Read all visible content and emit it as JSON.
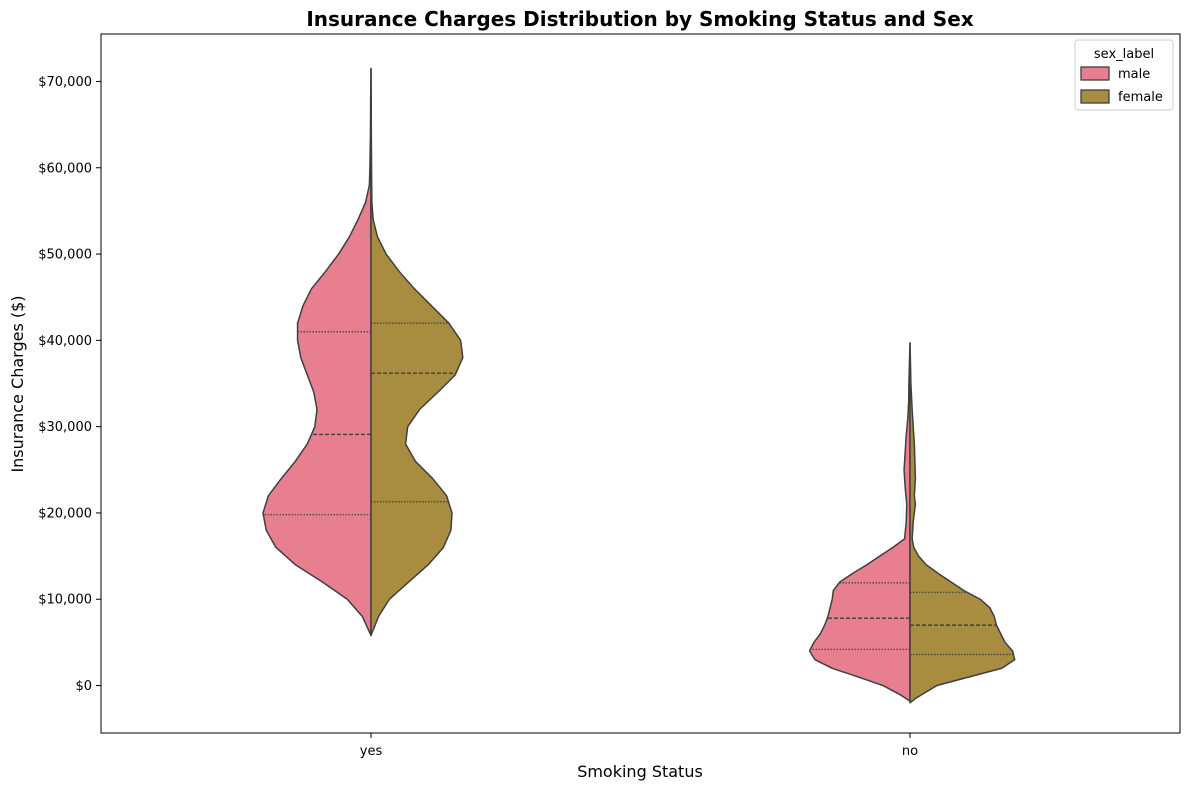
{
  "chart_data": {
    "type": "violin",
    "title": "Insurance Charges Distribution by Smoking Status and Sex",
    "xlabel": "Smoking Status",
    "ylabel": "Insurance Charges ($)",
    "categories": [
      "yes",
      "no"
    ],
    "ylim": [
      -5500,
      75500
    ],
    "yticks": [
      {
        "value": 0,
        "label": "$0"
      },
      {
        "value": 10000,
        "label": "$10,000"
      },
      {
        "value": 20000,
        "label": "$20,000"
      },
      {
        "value": 30000,
        "label": "$30,000"
      },
      {
        "value": 40000,
        "label": "$40,000"
      },
      {
        "value": 50000,
        "label": "$50,000"
      },
      {
        "value": 60000,
        "label": "$60,000"
      },
      {
        "value": 70000,
        "label": "$70,000"
      }
    ],
    "legend": {
      "title": "sex_label",
      "position": "top-right",
      "entries": [
        {
          "name": "male",
          "color": "#e87f90"
        },
        {
          "name": "female",
          "color": "#a88c3f"
        }
      ]
    },
    "grid": false,
    "split": true,
    "series": [
      {
        "name": "male",
        "color": "#e87f90",
        "violins": [
          {
            "category": "yes",
            "quartiles": {
              "q1": 19800,
              "median": 29100,
              "q3": 41000
            },
            "density": [
              [
                5800,
                0.0
              ],
              [
                8000,
                0.08
              ],
              [
                10000,
                0.22
              ],
              [
                12000,
                0.45
              ],
              [
                14000,
                0.7
              ],
              [
                16000,
                0.88
              ],
              [
                18000,
                0.97
              ],
              [
                20000,
                1.0
              ],
              [
                22000,
                0.95
              ],
              [
                24000,
                0.83
              ],
              [
                26000,
                0.7
              ],
              [
                28000,
                0.59
              ],
              [
                30000,
                0.52
              ],
              [
                32000,
                0.5
              ],
              [
                34000,
                0.53
              ],
              [
                36000,
                0.59
              ],
              [
                38000,
                0.65
              ],
              [
                40000,
                0.68
              ],
              [
                42000,
                0.68
              ],
              [
                44000,
                0.63
              ],
              [
                46000,
                0.55
              ],
              [
                48000,
                0.42
              ],
              [
                50000,
                0.3
              ],
              [
                52000,
                0.2
              ],
              [
                54000,
                0.12
              ],
              [
                56000,
                0.05
              ],
              [
                58000,
                0.015
              ],
              [
                60000,
                0.01
              ],
              [
                64000,
                0.005
              ],
              [
                68000,
                0.003
              ],
              [
                71500,
                0.0
              ]
            ]
          },
          {
            "category": "no",
            "quartiles": {
              "q1": 4200,
              "median": 7800,
              "q3": 11900
            },
            "density": [
              [
                -1800,
                0.0
              ],
              [
                -1000,
                0.1
              ],
              [
                0,
                0.25
              ],
              [
                1000,
                0.48
              ],
              [
                2000,
                0.72
              ],
              [
                3000,
                0.88
              ],
              [
                4000,
                0.93
              ],
              [
                5000,
                0.89
              ],
              [
                6000,
                0.83
              ],
              [
                7000,
                0.79
              ],
              [
                8000,
                0.76
              ],
              [
                9000,
                0.74
              ],
              [
                10000,
                0.72
              ],
              [
                11000,
                0.71
              ],
              [
                12000,
                0.65
              ],
              [
                13000,
                0.53
              ],
              [
                14000,
                0.4
              ],
              [
                15000,
                0.28
              ],
              [
                16000,
                0.16
              ],
              [
                17000,
                0.05
              ],
              [
                19000,
                0.035
              ],
              [
                21000,
                0.03
              ],
              [
                23000,
                0.045
              ],
              [
                25000,
                0.055
              ],
              [
                27000,
                0.045
              ],
              [
                29000,
                0.035
              ],
              [
                31000,
                0.02
              ],
              [
                33000,
                0.012
              ],
              [
                35000,
                0.01
              ],
              [
                37000,
                0.006
              ],
              [
                39700,
                0.0
              ]
            ]
          }
        ]
      },
      {
        "name": "female",
        "color": "#a88c3f",
        "violins": [
          {
            "category": "yes",
            "quartiles": {
              "q1": 21300,
              "median": 36200,
              "q3": 42000
            },
            "density": [
              [
                5800,
                0.0
              ],
              [
                8000,
                0.07
              ],
              [
                10000,
                0.17
              ],
              [
                12000,
                0.35
              ],
              [
                14000,
                0.53
              ],
              [
                16000,
                0.67
              ],
              [
                18000,
                0.74
              ],
              [
                20000,
                0.75
              ],
              [
                22000,
                0.7
              ],
              [
                24000,
                0.57
              ],
              [
                26000,
                0.41
              ],
              [
                28000,
                0.32
              ],
              [
                30000,
                0.34
              ],
              [
                32000,
                0.45
              ],
              [
                34000,
                0.62
              ],
              [
                36000,
                0.78
              ],
              [
                38000,
                0.85
              ],
              [
                40000,
                0.83
              ],
              [
                42000,
                0.72
              ],
              [
                44000,
                0.56
              ],
              [
                46000,
                0.4
              ],
              [
                48000,
                0.26
              ],
              [
                50000,
                0.14
              ],
              [
                52000,
                0.06
              ],
              [
                54000,
                0.02
              ],
              [
                56000,
                0.008
              ],
              [
                60000,
                0.005
              ],
              [
                64000,
                0.003
              ],
              [
                68000,
                0.002
              ],
              [
                71500,
                0.0
              ]
            ]
          },
          {
            "category": "no",
            "quartiles": {
              "q1": 3600,
              "median": 7000,
              "q3": 10800
            },
            "density": [
              [
                -2000,
                0.0
              ],
              [
                -1500,
                0.05
              ],
              [
                0,
                0.25
              ],
              [
                1000,
                0.55
              ],
              [
                2000,
                0.85
              ],
              [
                3000,
                0.97
              ],
              [
                4000,
                0.95
              ],
              [
                5000,
                0.88
              ],
              [
                6000,
                0.84
              ],
              [
                7000,
                0.8
              ],
              [
                8000,
                0.78
              ],
              [
                9000,
                0.74
              ],
              [
                10000,
                0.65
              ],
              [
                11000,
                0.5
              ],
              [
                12000,
                0.38
              ],
              [
                13000,
                0.26
              ],
              [
                14000,
                0.15
              ],
              [
                15000,
                0.08
              ],
              [
                16000,
                0.035
              ],
              [
                17000,
                0.02
              ],
              [
                18000,
                0.025
              ],
              [
                19000,
                0.03
              ],
              [
                20000,
                0.04
              ],
              [
                21000,
                0.05
              ],
              [
                22000,
                0.04
              ],
              [
                23000,
                0.045
              ],
              [
                24000,
                0.05
              ],
              [
                26000,
                0.045
              ],
              [
                28000,
                0.04
              ],
              [
                30000,
                0.03
              ],
              [
                32000,
                0.02
              ],
              [
                35000,
                0.008
              ],
              [
                37000,
                0.005
              ],
              [
                39700,
                0.0
              ]
            ]
          }
        ]
      }
    ]
  }
}
